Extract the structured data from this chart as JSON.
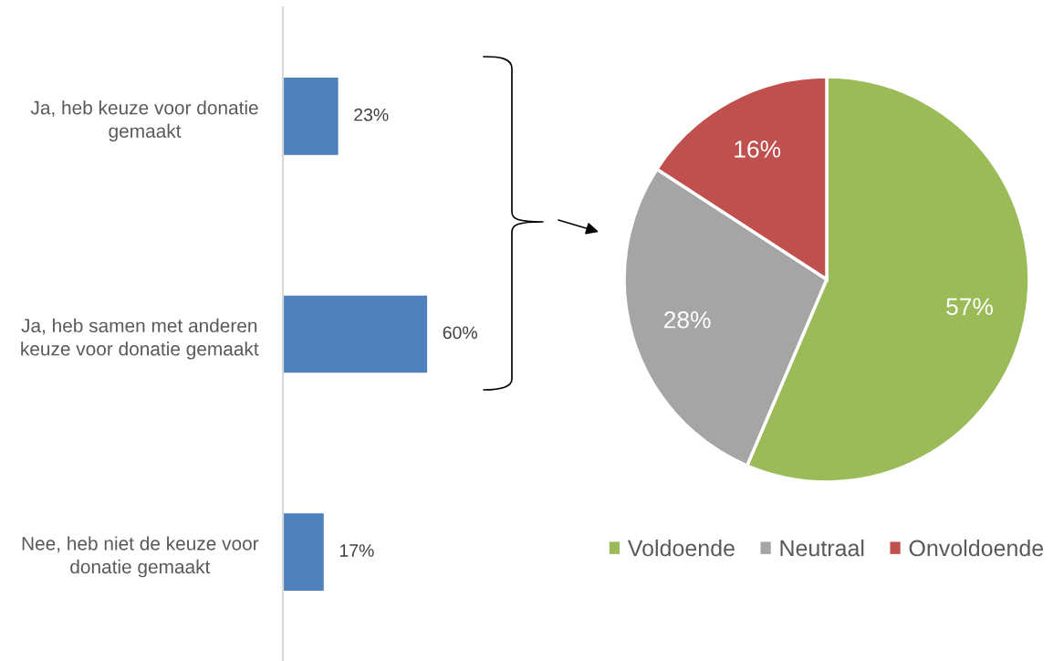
{
  "chart_data": [
    {
      "type": "bar",
      "orientation": "horizontal",
      "categories": [
        "Ja, heb keuze voor donatie\ngemaakt",
        "Ja, heb samen met anderen\nkeuze voor donatie gemaakt",
        "Nee, heb niet de keuze voor\ndonatie gemaakt"
      ],
      "values": [
        23,
        60,
        17
      ],
      "color": "#4f81bd",
      "value_labels": [
        "23%",
        "60%",
        "17%"
      ],
      "tick_labels": "y"
    },
    {
      "type": "pie",
      "categories": [
        "Voldoende",
        "Neutraal",
        "Onvoldoende"
      ],
      "values": [
        57,
        28,
        16
      ],
      "colors": [
        "#9bbb59",
        "#a5a5a5",
        "#c0504d"
      ],
      "value_labels": [
        "57%",
        "28%",
        "16%"
      ],
      "legend": "bottom"
    }
  ]
}
